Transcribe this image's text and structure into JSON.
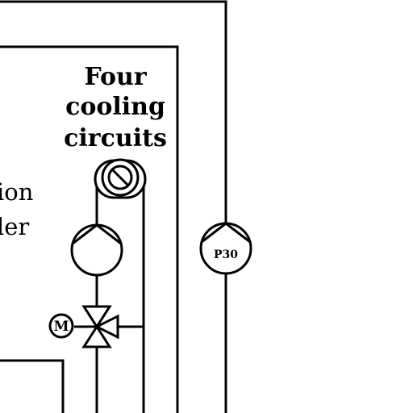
{
  "labels": {
    "cooling_line1": "Four",
    "cooling_line2": "cooling",
    "cooling_line3": "circuits",
    "partial_line1": "ion",
    "partial_line2": "ler"
  },
  "pump_labels": {
    "right_pump": "P30",
    "motor": "M"
  },
  "colors": {
    "line": "#000000",
    "background": "#ffffff"
  }
}
